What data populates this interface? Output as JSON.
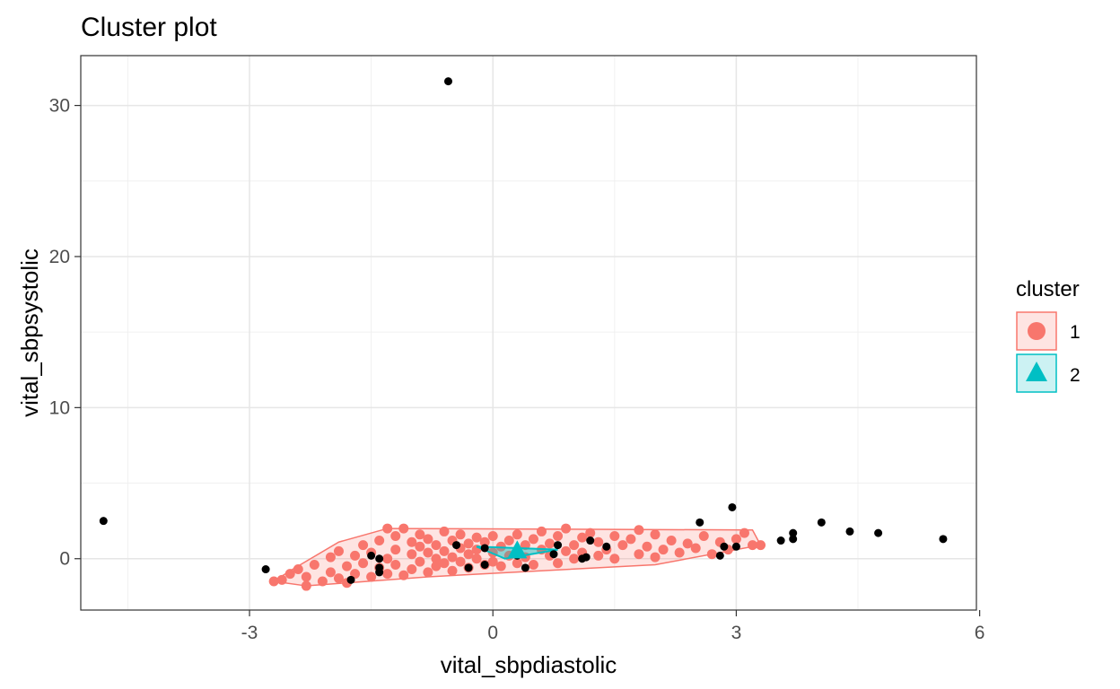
{
  "chart_data": {
    "type": "scatter",
    "title": "Cluster plot",
    "xlabel": "vital_sbpdiastolic",
    "ylabel": "vital_sbpsystolic",
    "xlim": [
      -5.08,
      5.96
    ],
    "ylim": [
      -3.4,
      33.3
    ],
    "x_ticks": [
      -3,
      0,
      3,
      6
    ],
    "y_ticks": [
      0,
      10,
      20,
      30
    ],
    "grid": true,
    "legend": {
      "title": "cluster",
      "placement": "right",
      "entries": [
        {
          "label": "1",
          "color": "#F8766D",
          "shape": "circle"
        },
        {
          "label": "2",
          "color": "#00BFC4",
          "shape": "triangle"
        }
      ]
    },
    "cluster_hulls": [
      {
        "cluster": "1",
        "color": "#F8766D",
        "polygon": [
          [
            -2.7,
            -1.5
          ],
          [
            -2.5,
            -0.8
          ],
          [
            -1.9,
            1.1
          ],
          [
            -1.3,
            2.0
          ],
          [
            3.2,
            1.9
          ],
          [
            3.3,
            0.9
          ],
          [
            2.0,
            -0.4
          ],
          [
            -0.8,
            -1.2
          ],
          [
            -2.3,
            -1.8
          ]
        ]
      },
      {
        "cluster": "2",
        "color": "#00BFC4",
        "polygon": [
          [
            -0.2,
            0.8
          ],
          [
            0.8,
            0.6
          ],
          [
            0.15,
            0.0
          ]
        ]
      }
    ],
    "cluster_centers": [
      {
        "cluster": "2",
        "x": 0.3,
        "y": 0.5
      }
    ],
    "cluster1_points": [
      [
        -2.6,
        -1.4
      ],
      [
        -2.5,
        -1.0
      ],
      [
        -2.4,
        -0.7
      ],
      [
        -2.3,
        -1.2
      ],
      [
        -2.2,
        -0.4
      ],
      [
        -2.1,
        -1.5
      ],
      [
        -2.0,
        -0.9
      ],
      [
        -2.0,
        0.1
      ],
      [
        -1.9,
        -1.3
      ],
      [
        -1.9,
        0.5
      ],
      [
        -1.8,
        -0.5
      ],
      [
        -1.8,
        -1.6
      ],
      [
        -1.7,
        0.2
      ],
      [
        -1.7,
        -1.0
      ],
      [
        -1.6,
        0.9
      ],
      [
        -1.6,
        -0.3
      ],
      [
        -1.5,
        -1.2
      ],
      [
        -1.5,
        0.4
      ],
      [
        -1.4,
        -0.6
      ],
      [
        -1.4,
        1.2
      ],
      [
        -1.3,
        0.0
      ],
      [
        -1.3,
        -1.0
      ],
      [
        -1.2,
        1.5
      ],
      [
        -1.2,
        0.6
      ],
      [
        -1.2,
        -0.4
      ],
      [
        -1.1,
        2.0
      ],
      [
        -1.1,
        -1.1
      ],
      [
        -1.0,
        0.3
      ],
      [
        -1.0,
        1.1
      ],
      [
        -1.0,
        -0.7
      ],
      [
        -0.9,
        0.8
      ],
      [
        -0.9,
        -0.2
      ],
      [
        -0.9,
        1.6
      ],
      [
        -0.8,
        0.4
      ],
      [
        -0.8,
        -0.9
      ],
      [
        -0.8,
        1.3
      ],
      [
        -0.7,
        0.0
      ],
      [
        -0.7,
        0.9
      ],
      [
        -0.7,
        -0.5
      ],
      [
        -0.6,
        1.8
      ],
      [
        -0.6,
        0.5
      ],
      [
        -0.6,
        -0.3
      ],
      [
        -0.5,
        1.2
      ],
      [
        -0.5,
        0.1
      ],
      [
        -0.5,
        -0.8
      ],
      [
        -0.4,
        0.7
      ],
      [
        -0.4,
        1.6
      ],
      [
        -0.4,
        -0.2
      ],
      [
        -0.3,
        0.3
      ],
      [
        -0.3,
        1.0
      ],
      [
        -0.3,
        -0.6
      ],
      [
        -0.2,
        1.4
      ],
      [
        -0.2,
        0.0
      ],
      [
        -0.2,
        0.6
      ],
      [
        -0.1,
        -0.4
      ],
      [
        -0.1,
        1.1
      ],
      [
        0.0,
        0.4
      ],
      [
        0.0,
        -0.2
      ],
      [
        0.0,
        1.5
      ],
      [
        0.1,
        0.8
      ],
      [
        0.1,
        -0.5
      ],
      [
        0.2,
        1.2
      ],
      [
        0.2,
        0.2
      ],
      [
        0.3,
        -0.3
      ],
      [
        0.3,
        1.6
      ],
      [
        0.4,
        0.9
      ],
      [
        0.4,
        0.1
      ],
      [
        0.5,
        1.3
      ],
      [
        0.5,
        -0.4
      ],
      [
        0.6,
        0.6
      ],
      [
        0.6,
        1.8
      ],
      [
        0.7,
        0.2
      ],
      [
        0.7,
        1.0
      ],
      [
        0.8,
        -0.3
      ],
      [
        0.8,
        1.5
      ],
      [
        0.9,
        0.5
      ],
      [
        0.9,
        2.0
      ],
      [
        1.0,
        0.9
      ],
      [
        1.0,
        0.0
      ],
      [
        1.1,
        1.4
      ],
      [
        1.1,
        0.4
      ],
      [
        1.2,
        1.7
      ],
      [
        1.3,
        0.2
      ],
      [
        1.3,
        1.1
      ],
      [
        1.4,
        0.6
      ],
      [
        1.5,
        1.5
      ],
      [
        1.5,
        0.0
      ],
      [
        1.6,
        0.9
      ],
      [
        1.7,
        1.3
      ],
      [
        1.8,
        0.3
      ],
      [
        1.9,
        0.8
      ],
      [
        2.0,
        1.6
      ],
      [
        2.0,
        0.1
      ],
      [
        2.1,
        0.6
      ],
      [
        2.2,
        1.2
      ],
      [
        2.3,
        0.4
      ],
      [
        2.4,
        1.0
      ],
      [
        2.5,
        0.7
      ],
      [
        2.6,
        1.5
      ],
      [
        2.7,
        0.3
      ],
      [
        2.8,
        1.1
      ],
      [
        2.9,
        0.6
      ],
      [
        3.0,
        1.3
      ],
      [
        3.1,
        1.7
      ],
      [
        3.2,
        0.9
      ],
      [
        -2.7,
        -1.5
      ],
      [
        -1.3,
        2.0
      ],
      [
        3.3,
        0.9
      ],
      [
        -2.3,
        -1.8
      ],
      [
        1.8,
        1.9
      ]
    ],
    "outlier_points": [
      [
        -4.8,
        2.5
      ],
      [
        -0.55,
        31.6
      ],
      [
        -2.8,
        -0.7
      ],
      [
        -1.75,
        -1.4
      ],
      [
        -1.5,
        0.2
      ],
      [
        -1.4,
        0.0
      ],
      [
        -1.4,
        -0.6
      ],
      [
        -1.4,
        -0.9
      ],
      [
        -0.45,
        0.9
      ],
      [
        -0.3,
        -0.6
      ],
      [
        -0.1,
        0.7
      ],
      [
        -0.1,
        -0.4
      ],
      [
        0.3,
        0.2
      ],
      [
        0.4,
        -0.6
      ],
      [
        0.75,
        0.3
      ],
      [
        0.8,
        0.9
      ],
      [
        1.1,
        0.0
      ],
      [
        1.15,
        0.1
      ],
      [
        1.2,
        1.2
      ],
      [
        1.4,
        0.8
      ],
      [
        2.55,
        2.4
      ],
      [
        2.8,
        0.2
      ],
      [
        2.85,
        0.8
      ],
      [
        2.95,
        3.4
      ],
      [
        3.0,
        0.8
      ],
      [
        3.55,
        1.2
      ],
      [
        3.7,
        1.3
      ],
      [
        3.7,
        1.7
      ],
      [
        4.05,
        2.4
      ],
      [
        4.4,
        1.8
      ],
      [
        4.75,
        1.7
      ],
      [
        5.55,
        1.3
      ]
    ],
    "point_colors": {
      "cluster1": "#F8766D",
      "outlier": "#000000"
    }
  }
}
